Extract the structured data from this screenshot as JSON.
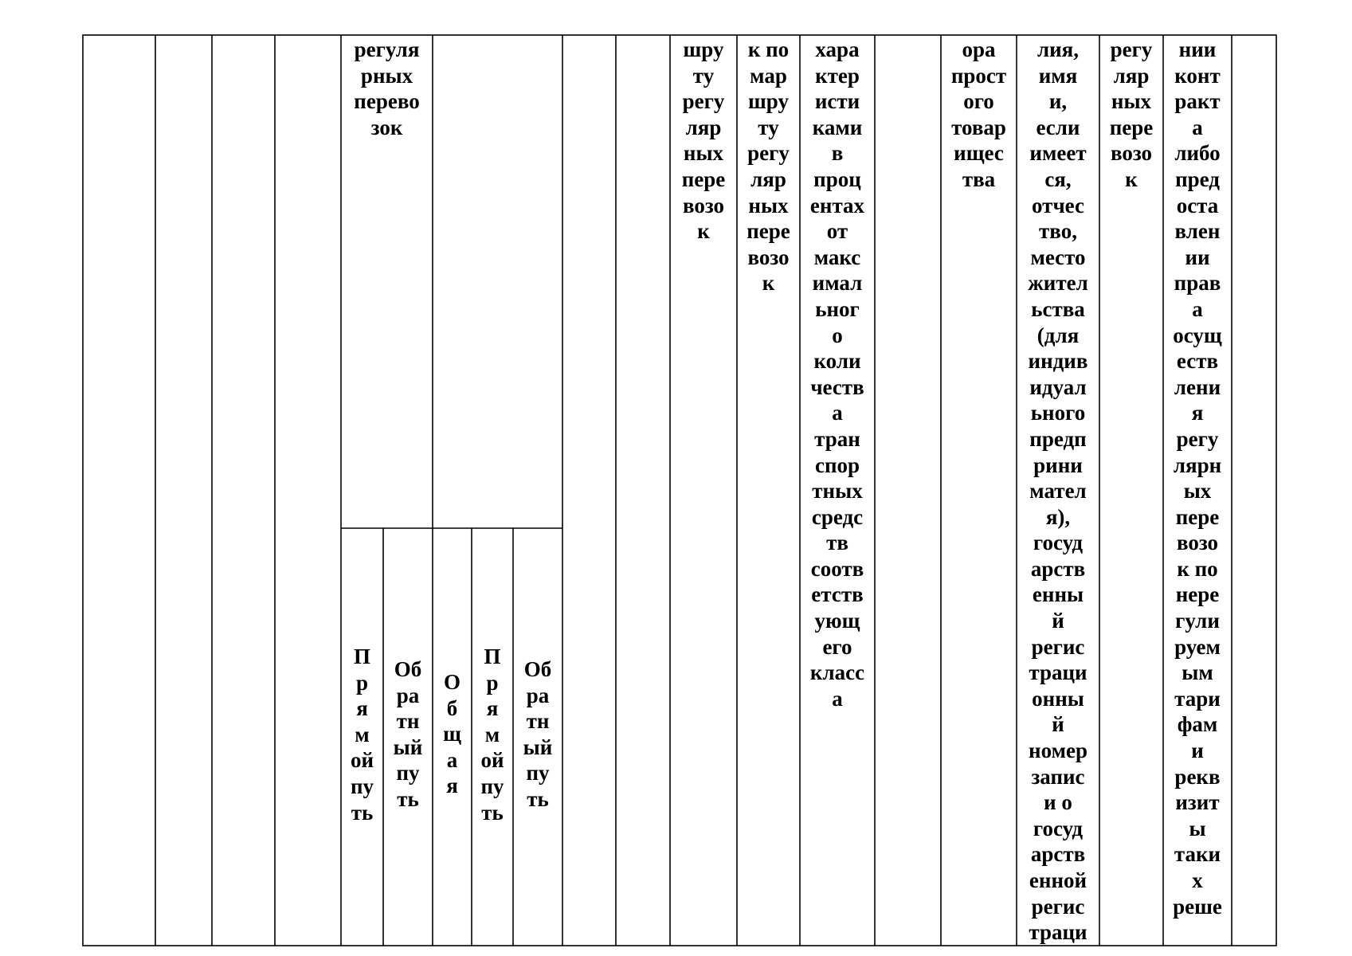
{
  "table": {
    "col_regular_top": "регуля\nрных\nперево\nзок",
    "col_route_a": "шру\nту\nрегу\nляр\nных\nпере\nвозо\nк",
    "col_route_b": "к по\nмар\nшру\nту\nрегу\nляр\nных\nпере\nвозо\nк",
    "col_characteristics": "хара\nктер\nисти\nками\nв\nпроц\nентах\nот\nмакс\nимал\nьног\nо\nколи\nчеств\nа\nтран\nспор\nтных\nсредс\nтв\nсоотв\nетств\nующ\nего\nкласс\nа",
    "col_partnership": "ора\nпрост\nого\nтовар\nищес\nтва",
    "col_carrier_name": "лия,\nимя\nи,\nесли\nимеет\nся,\nотчес\nтво,\nместо\nжител\nьства\n(для\nиндив\nидуал\nьного\nпредп\nрини\nмател\nя),\nгосуд\nарств\nенны\nй\nрегис\nтраци\nонны\nй\nномер\nзапис\nи о\nгосуд\nарств\nенной\nрегис\nтраци",
    "col_regular_c": "регу\nляр\nных\nпере\nвозо\nк",
    "col_contract": "нии\nконт\nракт\nа\nлибо\nпред\nоста\nвлен\nии\nправ\nа\nосущ\nеств\nлени\nя\nрегу\nлярн\nых\nпере\nвозо\nк по\nнере\nгули\nруем\nым\nтари\nфам\nи\nрекв\nизит\nы\nтаки\nх\nреше",
    "sub_forward_1": "П\nр\nя\nм\nой\nпу\nть",
    "sub_backward_1": "Об\nра\nтн\nый\nпу\nть",
    "sub_total": "О\nб\nщ\nа\nя",
    "sub_forward_2": "П\nр\nя\nм\nой\nпу\nть",
    "sub_backward_2": "Об\nра\nтн\nый\nпу\nть"
  }
}
